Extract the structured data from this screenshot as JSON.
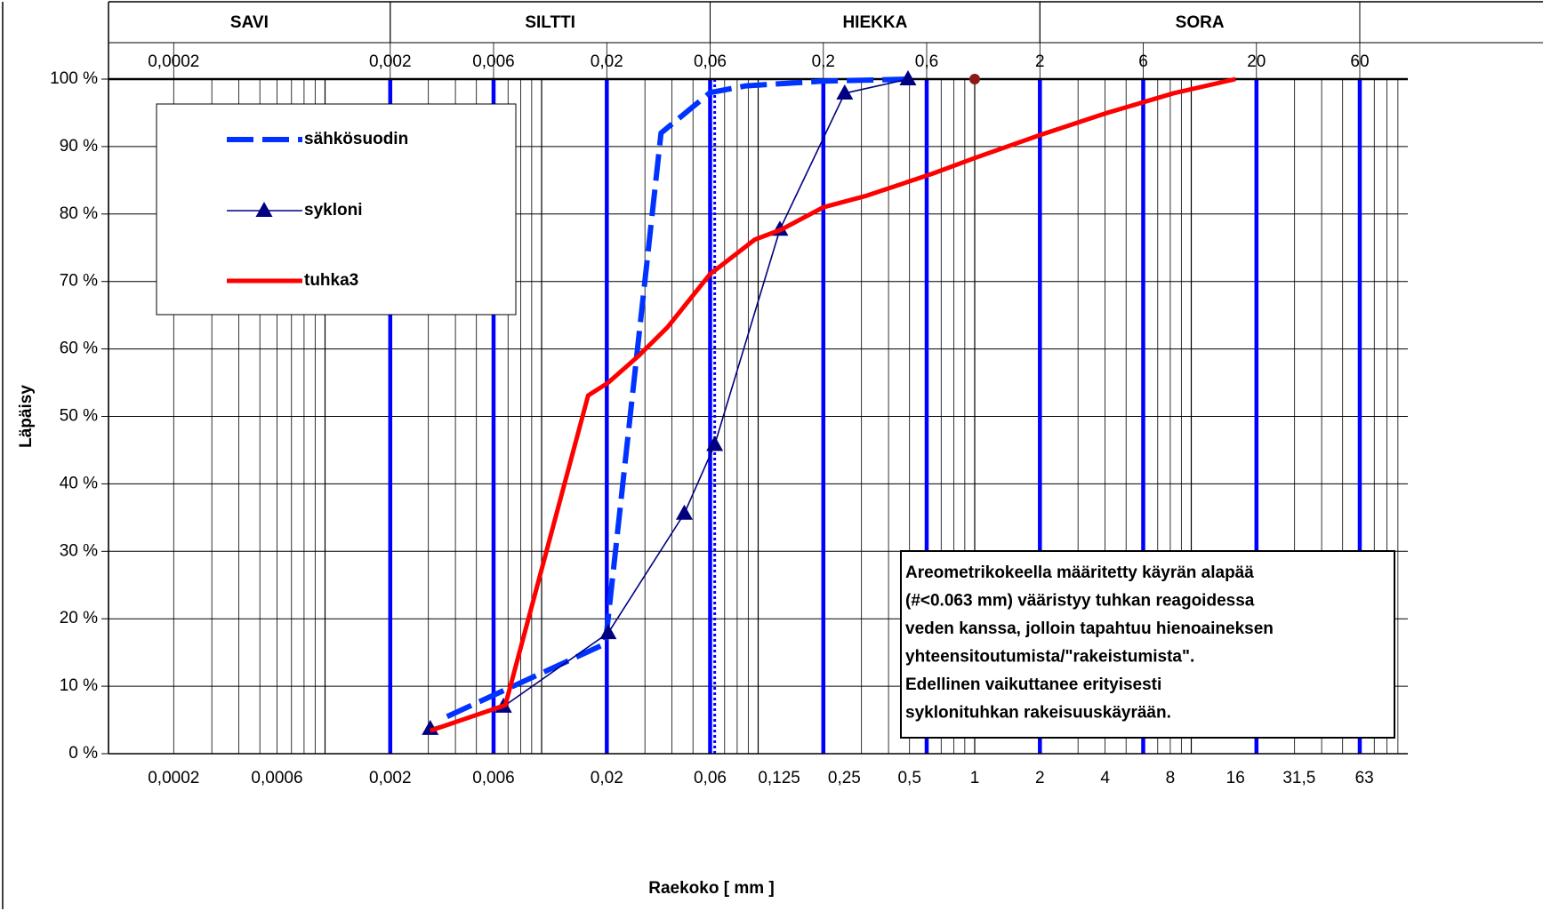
{
  "chart_data": {
    "type": "line",
    "xlabel": "Raekoko [ mm ]",
    "ylabel": "Läpäisy",
    "log_x": true,
    "grid": true,
    "xlim": [
      0.0001,
      100
    ],
    "ylim": [
      0,
      100
    ],
    "yticks": [
      {
        "value": 0,
        "label": "0 %"
      },
      {
        "value": 10,
        "label": "10 %"
      },
      {
        "value": 20,
        "label": "20 %"
      },
      {
        "value": 30,
        "label": "30 %"
      },
      {
        "value": 40,
        "label": "40 %"
      },
      {
        "value": 50,
        "label": "50 %"
      },
      {
        "value": 60,
        "label": "60 %"
      },
      {
        "value": 70,
        "label": "70 %"
      },
      {
        "value": 80,
        "label": "80 %"
      },
      {
        "value": 90,
        "label": "90 %"
      },
      {
        "value": 100,
        "label": "100 %"
      }
    ],
    "xticks": [
      {
        "value": 0.0002,
        "label": "0,0002"
      },
      {
        "value": 0.0006,
        "label": "0,0006"
      },
      {
        "value": 0.002,
        "label": "0,002"
      },
      {
        "value": 0.006,
        "label": "0,006"
      },
      {
        "value": 0.02,
        "label": "0,02"
      },
      {
        "value": 0.06,
        "label": "0,06"
      },
      {
        "value": 0.125,
        "label": "0,125"
      },
      {
        "value": 0.25,
        "label": "0,25"
      },
      {
        "value": 0.5,
        "label": "0,5"
      },
      1,
      2,
      4,
      8,
      16,
      {
        "value": 31.5,
        "label": "31,5"
      },
      63
    ],
    "x2ticks": [
      {
        "value": 0.0002,
        "label": "0,0002"
      },
      {
        "value": 0.002,
        "label": "0,002"
      },
      {
        "value": 0.006,
        "label": "0,006"
      },
      {
        "value": 0.02,
        "label": "0,02"
      },
      {
        "value": 0.06,
        "label": "0,06"
      },
      {
        "value": 0.2,
        "label": "0,2"
      },
      {
        "value": 0.6,
        "label": "0,6"
      },
      2,
      6,
      20,
      60
    ],
    "bands": [
      {
        "name": "SAVI",
        "from": 0.0001,
        "to": 0.002
      },
      {
        "name": "SILTTI",
        "from": 0.002,
        "to": 0.06
      },
      {
        "name": "HIEKKA",
        "from": 0.06,
        "to": 2
      },
      {
        "name": "SORA",
        "from": 2,
        "to": 60
      }
    ],
    "boundary_lines": [
      0.002,
      0.006,
      0.02,
      0.06,
      0.2,
      0.6,
      2,
      6,
      20,
      60
    ],
    "boundary_color": "#0000ff",
    "dotted_line": 0.063,
    "series": [
      {
        "name": "sähkösuodin",
        "color": "#0033ff",
        "style": "dashed",
        "x": [
          0.00366,
          0.0197,
          0.0356,
          0.06,
          0.0877,
          0.2,
          0.5
        ],
        "values": [
          5.5,
          16.3,
          92,
          98,
          99,
          99.7,
          100
        ]
      },
      {
        "name": "sykloni",
        "color": "#000080",
        "style": "triangles",
        "x": [
          0.00306,
          0.00667,
          0.0203,
          0.0456,
          0.063,
          0.126,
          0.251,
          0.492
        ],
        "values": [
          3.7,
          7,
          17.9,
          35.6,
          45.8,
          77.7,
          97.9,
          100
        ]
      },
      {
        "name": "tuhka3",
        "color": "#ff0000",
        "style": "thick",
        "x": [
          0.00306,
          0.0068,
          0.0164,
          0.0203,
          0.0281,
          0.0381,
          0.06,
          0.0964,
          0.128,
          0.2,
          0.316,
          0.641,
          1.0,
          2,
          4,
          8.28,
          16
        ],
        "values": [
          3.4,
          7.2,
          53.1,
          55,
          59,
          63.2,
          71.1,
          76.2,
          77.7,
          81,
          82.7,
          86,
          88.3,
          91.7,
          94.9,
          97.9,
          100
        ]
      }
    ],
    "marker_point": {
      "x": 1,
      "y": 100,
      "color": "#8b1a1a"
    },
    "annotation": [
      "Areometrikokeella määritetty käyrän alapää",
      "(#<0.063 mm) vääristyy tuhkan reagoidessa",
      "veden kanssa, jolloin tapahtuu hienoaineksen",
      "yhteensitoutumista/\"rakeistumista\".",
      "Edellinen vaikuttanee erityisesti",
      "syklonituhkan rakeisuuskäyrään."
    ]
  }
}
